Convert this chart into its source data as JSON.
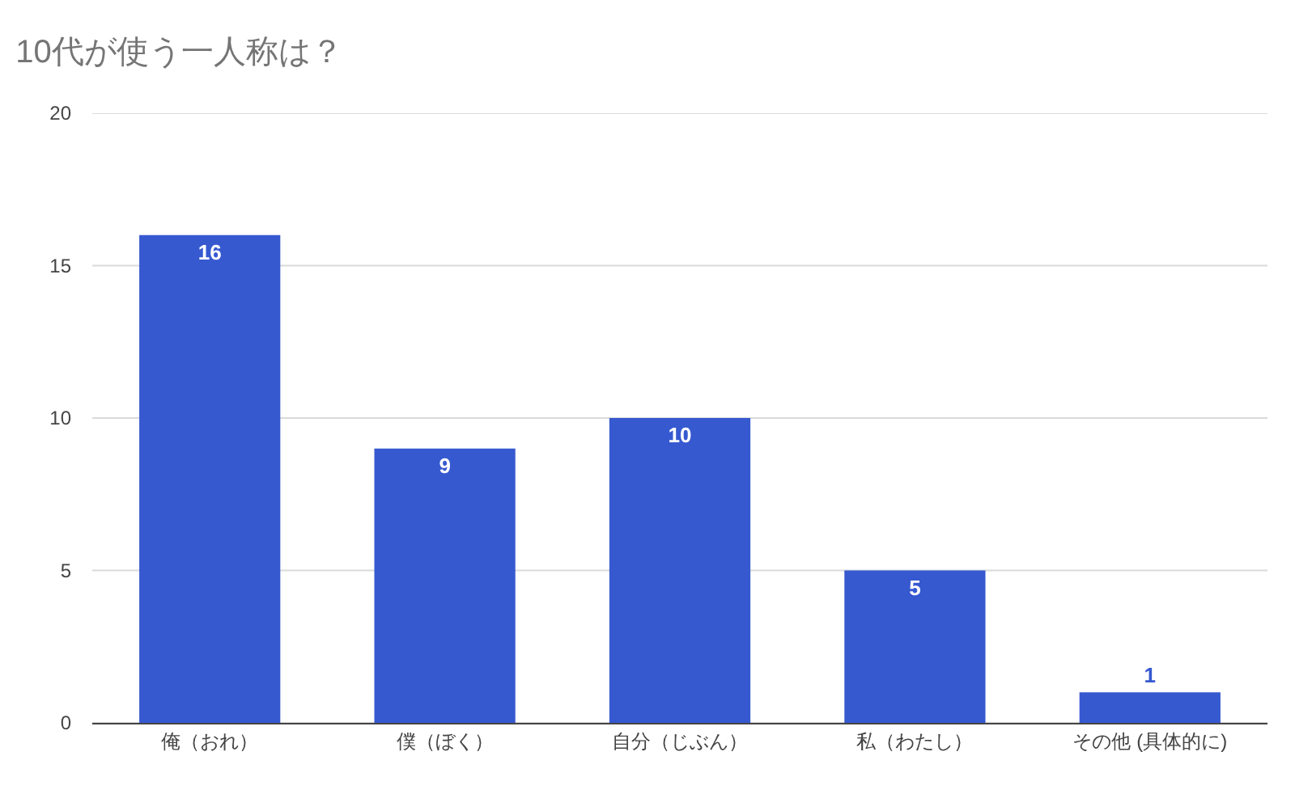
{
  "chart_data": {
    "type": "bar",
    "title": "10代が使う一人称は？",
    "categories": [
      "俺（おれ）",
      "僕（ぼく）",
      "自分（じぶん）",
      "私（わたし）",
      "その他 (具体的に)"
    ],
    "values": [
      16,
      9,
      10,
      5,
      1
    ],
    "color": "#3659d0",
    "ylim": [
      0,
      20
    ],
    "yticks": [
      0,
      5,
      10,
      15,
      20
    ],
    "grid": "y",
    "data_labels": true
  }
}
